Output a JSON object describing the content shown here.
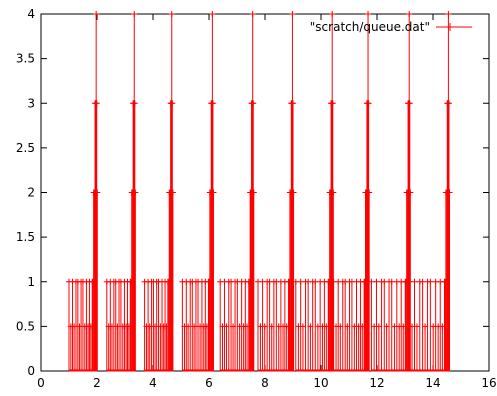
{
  "chart_data": {
    "type": "line",
    "title": "",
    "xlabel": "",
    "ylabel": "",
    "xlim": [
      0,
      16
    ],
    "ylim": [
      0,
      4
    ],
    "x_ticks": [
      0,
      2,
      4,
      6,
      8,
      10,
      12,
      14,
      16
    ],
    "y_ticks": [
      0,
      0.5,
      1,
      1.5,
      2,
      2.5,
      3,
      3.5,
      4
    ],
    "x_tick_labels": [
      "0",
      "2",
      "4",
      "6",
      "8",
      "10",
      "12",
      "14",
      "16"
    ],
    "y_tick_labels": [
      "0",
      "0.5",
      "1",
      "1.5",
      "2",
      "2.5",
      "3",
      "3.5",
      "4"
    ],
    "grid": false,
    "legend_position": "top-right",
    "line_style": "impulses with plus markers",
    "series": [
      {
        "name": "\"scratch/queue.dat\"",
        "color": "#ff0000",
        "burst_starts": [
          1.0,
          2.35,
          3.7,
          5.05,
          6.4,
          7.75,
          9.1,
          10.45,
          11.8,
          13.15
        ],
        "burst_peaks": [
          1.97,
          3.33,
          4.67,
          6.12,
          7.56,
          8.98,
          10.4,
          11.68,
          13.15,
          14.55
        ],
        "burst_profile": {
          "x_offset": [
            0.0,
            0.08,
            0.15,
            0.22,
            0.3,
            0.38,
            0.45,
            0.52,
            0.6,
            0.68,
            0.75,
            0.82,
            0.88,
            0.94,
            1.0
          ],
          "y": [
            1,
            0.5,
            1,
            0.5,
            1,
            1,
            0.5,
            1,
            1,
            0.5,
            1,
            0.5,
            1,
            0.5,
            1
          ]
        },
        "peak_profile": {
          "x_offset": [
            -0.12,
            -0.09,
            -0.06,
            -0.04,
            -0.02,
            0.0,
            0.02,
            0.04
          ],
          "y": [
            1,
            2,
            2,
            3,
            3,
            4,
            3,
            2
          ]
        }
      }
    ]
  }
}
